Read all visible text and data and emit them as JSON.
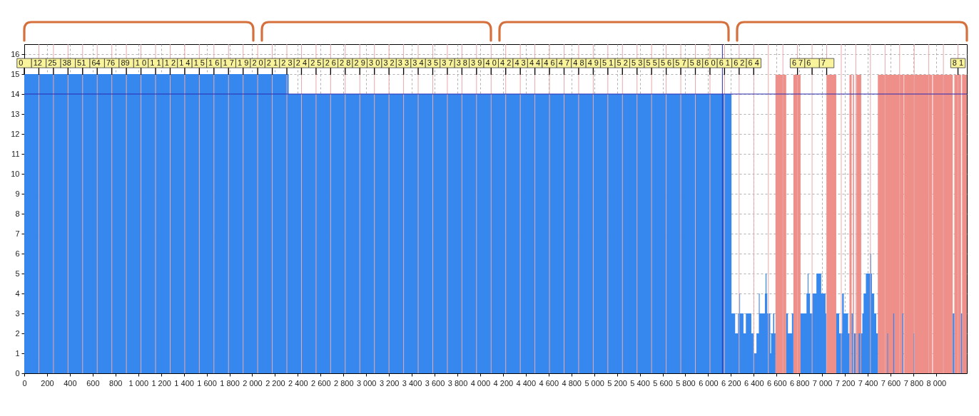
{
  "chart_data": {
    "type": "area",
    "x": [
      0,
      2320,
      6205,
      6237,
      6262,
      6274,
      6280,
      6310,
      6331,
      6379,
      6399,
      6424,
      6445,
      6452,
      6498,
      6504,
      6512,
      6518,
      6545,
      6552,
      6570,
      6580,
      6591,
      6685,
      6700,
      6735,
      6748,
      6811,
      6863,
      6873,
      6880,
      6894,
      6915,
      6950,
      6992,
      7030,
      7036,
      7124,
      7150,
      7176,
      7190,
      7228,
      7240,
      7259,
      7270,
      7280,
      7301,
      7320,
      7335,
      7343,
      7353,
      7364,
      7384,
      7422,
      7430,
      7437,
      7457,
      7475,
      7489,
      7572,
      7578,
      7624,
      7632,
      7704,
      7712,
      7802,
      7808,
      8146,
      8160,
      8219,
      8228,
      8270
    ],
    "series": [
      {
        "color": "#3688ee",
        "values": [
          15,
          14,
          3,
          2,
          3,
          4,
          3,
          2,
          3,
          2,
          1,
          2,
          4,
          3,
          4,
          5,
          4,
          3,
          1,
          2,
          3,
          2,
          0,
          3,
          2,
          3,
          0,
          3,
          4,
          5,
          4,
          3,
          4,
          5,
          4,
          3,
          0,
          3,
          2,
          4,
          3,
          2,
          0,
          3,
          0,
          2,
          0,
          2,
          0,
          2,
          3,
          4,
          5,
          6,
          5,
          4,
          3,
          2,
          0,
          2,
          0,
          3,
          0,
          3,
          0,
          2,
          0,
          3,
          0,
          3,
          0,
          0
        ]
      }
    ],
    "xlim": [
      0,
      8270
    ],
    "xticks": [
      0,
      200,
      400,
      600,
      800,
      {
        "value": 1000,
        "label": "1 000"
      },
      {
        "value": 1200,
        "label": "1 200"
      },
      {
        "value": 1400,
        "label": "1 400"
      },
      {
        "value": 1600,
        "label": "1 600"
      },
      {
        "value": 1800,
        "label": "1 800"
      },
      {
        "value": 2000,
        "label": "2 000"
      },
      {
        "value": 2200,
        "label": "2 200"
      },
      {
        "value": 2400,
        "label": "2 400"
      },
      {
        "value": 2600,
        "label": "2 600"
      },
      {
        "value": 2800,
        "label": "2 800"
      },
      {
        "value": 3000,
        "label": "3 000"
      },
      {
        "value": 3200,
        "label": "3 200"
      },
      {
        "value": 3400,
        "label": "3 400"
      },
      {
        "value": 3600,
        "label": "3 600"
      },
      {
        "value": 3800,
        "label": "3 800"
      },
      {
        "value": 4000,
        "label": "4 000"
      },
      {
        "value": 4200,
        "label": "4 200"
      },
      {
        "value": 4400,
        "label": "4 400"
      },
      {
        "value": 4600,
        "label": "4 600"
      },
      {
        "value": 4800,
        "label": "4 800"
      },
      {
        "value": 5000,
        "label": "5 000"
      },
      {
        "value": 5200,
        "label": "5 200"
      },
      {
        "value": 5400,
        "label": "5 400"
      },
      {
        "value": 5600,
        "label": "5 600"
      },
      {
        "value": 5800,
        "label": "5 800"
      },
      {
        "value": 6000,
        "label": "6 000"
      },
      {
        "value": 6200,
        "label": "6 200"
      },
      {
        "value": 6400,
        "label": "6 400"
      },
      {
        "value": 6600,
        "label": "6 600"
      },
      {
        "value": 6800,
        "label": "6 800"
      },
      {
        "value": 7000,
        "label": "7 000"
      },
      {
        "value": 7200,
        "label": "7 200"
      },
      {
        "value": 7400,
        "label": "7 400"
      },
      {
        "value": 7600,
        "label": "7 600"
      },
      {
        "value": 7800,
        "label": "7 800"
      },
      {
        "value": 8000,
        "label": "8 000"
      }
    ],
    "ylim": [
      0,
      16.5
    ],
    "yticks": [
      0,
      1,
      2,
      3,
      4,
      5,
      6,
      7,
      8,
      9,
      10,
      11,
      12,
      13,
      14,
      15,
      16
    ],
    "grid": true,
    "bands": [
      {
        "axis": "x",
        "from": 6591,
        "to": 6685,
        "color": "#ef8f8a"
      },
      {
        "axis": "x",
        "from": 6748,
        "to": 6811,
        "color": "#ef8f8a"
      },
      {
        "axis": "x",
        "from": 7036,
        "to": 7124,
        "color": "#ef8f8a"
      },
      {
        "axis": "x",
        "from": 7240,
        "to": 7259,
        "color": "#ef8f8a"
      },
      {
        "axis": "x",
        "from": 7270,
        "to": 7280,
        "color": "#ef8f8a"
      },
      {
        "axis": "x",
        "from": 7301,
        "to": 7343,
        "color": "#ef8f8a"
      },
      {
        "axis": "x",
        "from": 7489,
        "to": 7716,
        "color": "#ef8f8a"
      },
      {
        "axis": "x",
        "from": 7720,
        "to": 7966,
        "color": "#ef8f8a"
      },
      {
        "axis": "x",
        "from": 7972,
        "to": 8146,
        "color": "#ef8f8a"
      },
      {
        "axis": "x",
        "from": 8160,
        "to": 8219,
        "color": "#ef8f8a"
      },
      {
        "axis": "x",
        "from": 8228,
        "to": 8270,
        "color": "#ef8f8a"
      }
    ],
    "ref_lines": [
      {
        "axis": "y",
        "value": 14,
        "color": "#2a2ab0"
      },
      {
        "axis": "x",
        "value": 6125,
        "color": "#2a2ab0"
      },
      {
        "axis": "x",
        "value": 128,
        "color": "#e8aaaa"
      },
      {
        "axis": "x",
        "value": 256,
        "color": "#e8aaaa"
      },
      {
        "axis": "x",
        "value": 384,
        "color": "#e8aaaa"
      },
      {
        "axis": "x",
        "value": 512,
        "color": "#e8aaaa"
      },
      {
        "axis": "x",
        "value": 640,
        "color": "#e8aaaa"
      },
      {
        "axis": "x",
        "value": 768,
        "color": "#e8aaaa"
      },
      {
        "axis": "x",
        "value": 896,
        "color": "#e8aaaa"
      },
      {
        "axis": "x",
        "value": 1024,
        "color": "#e8aaaa"
      },
      {
        "axis": "x",
        "value": 1152,
        "color": "#e8aaaa"
      },
      {
        "axis": "x",
        "value": 1280,
        "color": "#e8aaaa"
      },
      {
        "axis": "x",
        "value": 1408,
        "color": "#e8aaaa"
      },
      {
        "axis": "x",
        "value": 1536,
        "color": "#e8aaaa"
      },
      {
        "axis": "x",
        "value": 1664,
        "color": "#e8aaaa"
      },
      {
        "axis": "x",
        "value": 1792,
        "color": "#e8aaaa"
      },
      {
        "axis": "x",
        "value": 1920,
        "color": "#e8aaaa"
      },
      {
        "axis": "x",
        "value": 2048,
        "color": "#e8aaaa"
      },
      {
        "axis": "x",
        "value": 2176,
        "color": "#e8aaaa"
      },
      {
        "axis": "x",
        "value": 2304,
        "color": "#e8aaaa"
      },
      {
        "axis": "x",
        "value": 2432,
        "color": "#e8aaaa"
      },
      {
        "axis": "x",
        "value": 2560,
        "color": "#e8aaaa"
      },
      {
        "axis": "x",
        "value": 2688,
        "color": "#e8aaaa"
      },
      {
        "axis": "x",
        "value": 2816,
        "color": "#e8aaaa"
      },
      {
        "axis": "x",
        "value": 2944,
        "color": "#e8aaaa"
      },
      {
        "axis": "x",
        "value": 3072,
        "color": "#e8aaaa"
      },
      {
        "axis": "x",
        "value": 3200,
        "color": "#e8aaaa"
      },
      {
        "axis": "x",
        "value": 3328,
        "color": "#e8aaaa"
      },
      {
        "axis": "x",
        "value": 3456,
        "color": "#e8aaaa"
      },
      {
        "axis": "x",
        "value": 3584,
        "color": "#e8aaaa"
      },
      {
        "axis": "x",
        "value": 3712,
        "color": "#e8aaaa"
      },
      {
        "axis": "x",
        "value": 3840,
        "color": "#e8aaaa"
      },
      {
        "axis": "x",
        "value": 3968,
        "color": "#e8aaaa"
      },
      {
        "axis": "x",
        "value": 4096,
        "color": "#e8aaaa"
      },
      {
        "axis": "x",
        "value": 4224,
        "color": "#e8aaaa"
      },
      {
        "axis": "x",
        "value": 4352,
        "color": "#e8aaaa"
      },
      {
        "axis": "x",
        "value": 4480,
        "color": "#e8aaaa"
      },
      {
        "axis": "x",
        "value": 4608,
        "color": "#e8aaaa"
      },
      {
        "axis": "x",
        "value": 4736,
        "color": "#e8aaaa"
      },
      {
        "axis": "x",
        "value": 4864,
        "color": "#e8aaaa"
      },
      {
        "axis": "x",
        "value": 4992,
        "color": "#e8aaaa"
      },
      {
        "axis": "x",
        "value": 5120,
        "color": "#e8aaaa"
      },
      {
        "axis": "x",
        "value": 5248,
        "color": "#e8aaaa"
      },
      {
        "axis": "x",
        "value": 5376,
        "color": "#e8aaaa"
      },
      {
        "axis": "x",
        "value": 5504,
        "color": "#e8aaaa"
      },
      {
        "axis": "x",
        "value": 5632,
        "color": "#e8aaaa"
      },
      {
        "axis": "x",
        "value": 5760,
        "color": "#e8aaaa"
      },
      {
        "axis": "x",
        "value": 5888,
        "color": "#e8aaaa"
      },
      {
        "axis": "x",
        "value": 6016,
        "color": "#e8aaaa"
      },
      {
        "axis": "x",
        "value": 6144,
        "color": "#e8aaaa"
      },
      {
        "axis": "x",
        "value": 6272,
        "color": "#e8aaaa"
      },
      {
        "axis": "x",
        "value": 6400,
        "color": "#e8aaaa"
      },
      {
        "axis": "x",
        "value": 6528,
        "color": "#e8aaaa"
      },
      {
        "axis": "x",
        "value": 6656,
        "color": "#e8aaaa"
      },
      {
        "axis": "x",
        "value": 6784,
        "color": "#e8aaaa"
      },
      {
        "axis": "x",
        "value": 6912,
        "color": "#e8aaaa"
      },
      {
        "axis": "x",
        "value": 7040,
        "color": "#e8aaaa"
      },
      {
        "axis": "x",
        "value": 7168,
        "color": "#e8aaaa"
      },
      {
        "axis": "x",
        "value": 7296,
        "color": "#e8aaaa"
      },
      {
        "axis": "x",
        "value": 7424,
        "color": "#e8aaaa"
      },
      {
        "axis": "x",
        "value": 7552,
        "color": "#e8aaaa"
      },
      {
        "axis": "x",
        "value": 7680,
        "color": "#e8aaaa"
      },
      {
        "axis": "x",
        "value": 7808,
        "color": "#e8aaaa"
      },
      {
        "axis": "x",
        "value": 7936,
        "color": "#e8aaaa"
      },
      {
        "axis": "x",
        "value": 8064,
        "color": "#e8aaaa"
      },
      {
        "axis": "x",
        "value": 8192,
        "color": "#e8aaaa"
      }
    ],
    "annotations": [
      {
        "text": "0",
        "x": 0,
        "y": 15.55
      },
      {
        "text": "12",
        "x": 128,
        "y": 15.55
      },
      {
        "text": "25",
        "x": 256,
        "y": 15.55
      },
      {
        "text": "38",
        "x": 384,
        "y": 15.55
      },
      {
        "text": "51",
        "x": 512,
        "y": 15.55
      },
      {
        "text": "64",
        "x": 640,
        "y": 15.55
      },
      {
        "text": "76",
        "x": 768,
        "y": 15.55
      },
      {
        "text": "89",
        "x": 896,
        "y": 15.55
      },
      {
        "text": "1 0",
        "x": 1024,
        "y": 15.55
      },
      {
        "text": "1 1",
        "x": 1152,
        "y": 15.55
      },
      {
        "text": "1 2",
        "x": 1280,
        "y": 15.55
      },
      {
        "text": "1 4",
        "x": 1408,
        "y": 15.55
      },
      {
        "text": "1 5",
        "x": 1536,
        "y": 15.55
      },
      {
        "text": "1 6",
        "x": 1664,
        "y": 15.55
      },
      {
        "text": "1 7",
        "x": 1792,
        "y": 15.55
      },
      {
        "text": "1 9",
        "x": 1920,
        "y": 15.55
      },
      {
        "text": "2 0",
        "x": 2048,
        "y": 15.55
      },
      {
        "text": "2 1",
        "x": 2176,
        "y": 15.55
      },
      {
        "text": "2 3",
        "x": 2304,
        "y": 15.55
      },
      {
        "text": "2 4",
        "x": 2432,
        "y": 15.55
      },
      {
        "text": "2 5",
        "x": 2560,
        "y": 15.55
      },
      {
        "text": "2 6",
        "x": 2688,
        "y": 15.55
      },
      {
        "text": "2 8",
        "x": 2816,
        "y": 15.55
      },
      {
        "text": "2 9",
        "x": 2944,
        "y": 15.55
      },
      {
        "text": "3 0",
        "x": 3072,
        "y": 15.55
      },
      {
        "text": "3 2",
        "x": 3200,
        "y": 15.55
      },
      {
        "text": "3 3",
        "x": 3328,
        "y": 15.55
      },
      {
        "text": "3 4",
        "x": 3456,
        "y": 15.55
      },
      {
        "text": "3 5",
        "x": 3584,
        "y": 15.55
      },
      {
        "text": "3 7",
        "x": 3712,
        "y": 15.55
      },
      {
        "text": "3 8",
        "x": 3840,
        "y": 15.55
      },
      {
        "text": "3 9",
        "x": 3968,
        "y": 15.55
      },
      {
        "text": "4 0",
        "x": 4096,
        "y": 15.55
      },
      {
        "text": "4 2",
        "x": 4224,
        "y": 15.55
      },
      {
        "text": "4 3",
        "x": 4352,
        "y": 15.55
      },
      {
        "text": "4 4",
        "x": 4480,
        "y": 15.55
      },
      {
        "text": "4 6",
        "x": 4608,
        "y": 15.55
      },
      {
        "text": "4 7",
        "x": 4736,
        "y": 15.55
      },
      {
        "text": "4 8",
        "x": 4864,
        "y": 15.55
      },
      {
        "text": "4 9",
        "x": 4992,
        "y": 15.55
      },
      {
        "text": "5 1",
        "x": 5120,
        "y": 15.55
      },
      {
        "text": "5 2",
        "x": 5248,
        "y": 15.55
      },
      {
        "text": "5 3",
        "x": 5376,
        "y": 15.55
      },
      {
        "text": "5 5",
        "x": 5504,
        "y": 15.55
      },
      {
        "text": "5 6",
        "x": 5632,
        "y": 15.55
      },
      {
        "text": "5 7",
        "x": 5760,
        "y": 15.55
      },
      {
        "text": "5 8",
        "x": 5888,
        "y": 15.55
      },
      {
        "text": "6 0",
        "x": 6016,
        "y": 15.55
      },
      {
        "text": "6 1",
        "x": 6144,
        "y": 15.55
      },
      {
        "text": "6 2",
        "x": 6272,
        "y": 15.55
      },
      {
        "text": "6 4",
        "x": 6400,
        "y": 15.55
      },
      {
        "text": "6 7",
        "x": 6784,
        "y": 15.55
      },
      {
        "text": "6",
        "x": 6912,
        "y": 15.55
      },
      {
        "text": "7",
        "x": 7040,
        "y": 15.55
      },
      {
        "text": "8 1",
        "x": 8192,
        "y": 15.55
      }
    ]
  }
}
